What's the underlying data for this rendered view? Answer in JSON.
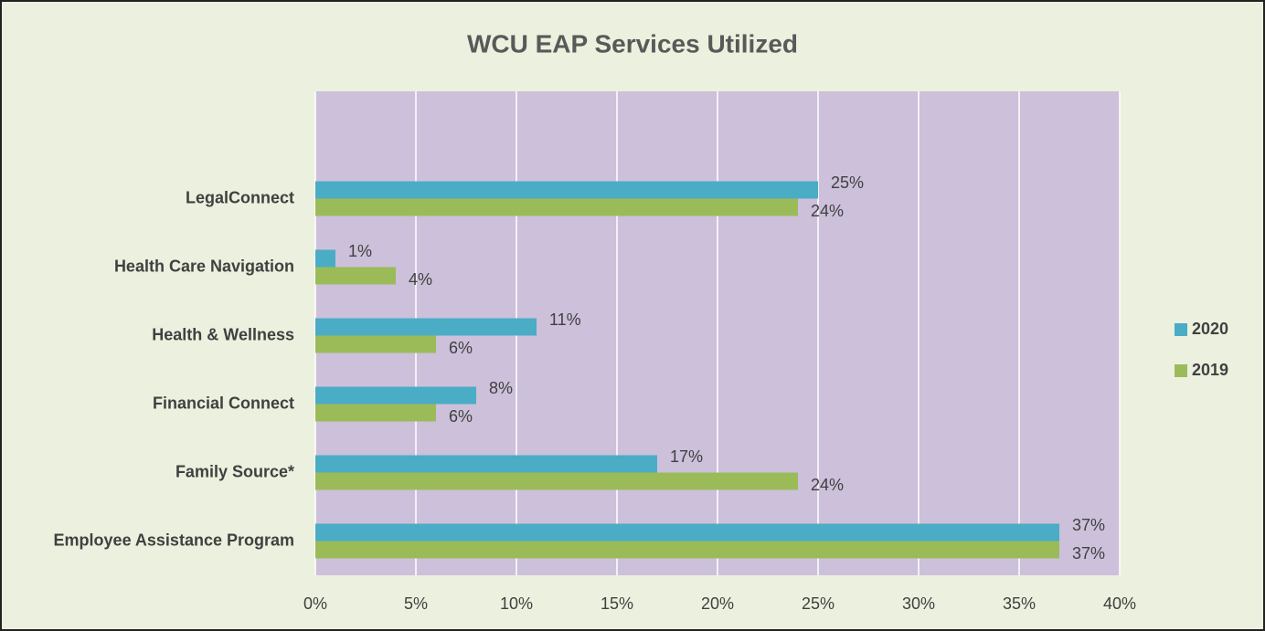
{
  "chart_data": {
    "type": "bar",
    "orientation": "horizontal",
    "title": "WCU EAP Services Utilized",
    "categories": [
      "LegalConnect",
      "Health Care Navigation",
      "Health & Wellness",
      "Financial Connect",
      "Family Source*",
      "Employee Assistance Program"
    ],
    "series": [
      {
        "name": "2020",
        "color": "#4bacc6",
        "values": [
          25,
          1,
          11,
          8,
          17,
          37
        ],
        "value_labels": [
          "25%",
          "1%",
          "11%",
          "8%",
          "17%",
          "37%"
        ]
      },
      {
        "name": "2019",
        "color": "#9bbb59",
        "values": [
          24,
          4,
          6,
          6,
          24,
          37
        ],
        "value_labels": [
          "24%",
          "4%",
          "6%",
          "6%",
          "24%",
          "37%"
        ]
      }
    ],
    "xlim": [
      0,
      40
    ],
    "xticks": [
      {
        "value": 0,
        "label": "0%"
      },
      {
        "value": 5,
        "label": "5%"
      },
      {
        "value": 10,
        "label": "10%"
      },
      {
        "value": 15,
        "label": "15%"
      },
      {
        "value": 20,
        "label": "20%"
      },
      {
        "value": 25,
        "label": "25%"
      },
      {
        "value": 30,
        "label": "30%"
      },
      {
        "value": 35,
        "label": "35%"
      },
      {
        "value": 40,
        "label": "40%"
      }
    ],
    "grid": true,
    "legend": "right"
  }
}
